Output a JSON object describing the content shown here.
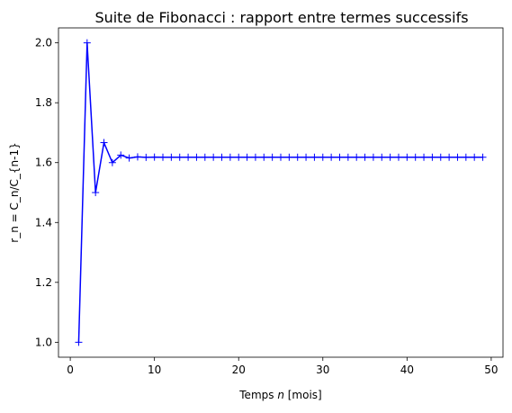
{
  "chart_data": {
    "type": "line",
    "title": "Suite de Fibonacci : rapport entre termes successifs",
    "xlabel": {
      "before": "Temps ",
      "var": "n",
      "after": " [mois]"
    },
    "ylabel": "r_n = C_n/C_{n-1}",
    "xlim": [
      -1.4,
      51.4
    ],
    "ylim": [
      0.95,
      2.05
    ],
    "xticks": [
      0,
      10,
      20,
      30,
      40,
      50
    ],
    "yticks": [
      1.0,
      1.2,
      1.4,
      1.6,
      1.8,
      2.0
    ],
    "xtick_labels": [
      "0",
      "10",
      "20",
      "30",
      "40",
      "50"
    ],
    "ytick_labels": [
      "1.0",
      "1.2",
      "1.4",
      "1.6",
      "1.8",
      "2.0"
    ],
    "grid": false,
    "marker": "+",
    "color": "#0000ff",
    "series": [
      {
        "x": [
          1,
          2,
          3,
          4,
          5,
          6,
          7,
          8,
          9,
          10,
          11,
          12,
          13,
          14,
          15,
          16,
          17,
          18,
          19,
          20,
          21,
          22,
          23,
          24,
          25,
          26,
          27,
          28,
          29,
          30,
          31,
          32,
          33,
          34,
          35,
          36,
          37,
          38,
          39,
          40,
          41,
          42,
          43,
          44,
          45,
          46,
          47,
          48,
          49
        ],
        "values": [
          1.0,
          2.0,
          1.5,
          1.6667,
          1.6,
          1.625,
          1.6154,
          1.619,
          1.6176,
          1.6182,
          1.618,
          1.6181,
          1.618,
          1.618,
          1.618,
          1.618,
          1.618,
          1.618,
          1.618,
          1.618,
          1.618,
          1.618,
          1.618,
          1.618,
          1.618,
          1.618,
          1.618,
          1.618,
          1.618,
          1.618,
          1.618,
          1.618,
          1.618,
          1.618,
          1.618,
          1.618,
          1.618,
          1.618,
          1.618,
          1.618,
          1.618,
          1.618,
          1.618,
          1.618,
          1.618,
          1.618,
          1.618,
          1.618,
          1.618
        ]
      }
    ]
  }
}
